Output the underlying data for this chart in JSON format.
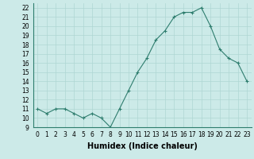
{
  "x": [
    0,
    1,
    2,
    3,
    4,
    5,
    6,
    7,
    8,
    9,
    10,
    11,
    12,
    13,
    14,
    15,
    16,
    17,
    18,
    19,
    20,
    21,
    22,
    23
  ],
  "y": [
    11,
    10.5,
    11,
    11,
    10.5,
    10,
    10.5,
    10,
    9,
    11,
    13,
    15,
    16.5,
    18.5,
    19.5,
    21,
    21.5,
    21.5,
    22,
    20,
    17.5,
    16.5,
    16,
    14
  ],
  "xlabel": "Humidex (Indice chaleur)",
  "ylim": [
    9,
    22.5
  ],
  "xlim": [
    -0.5,
    23.5
  ],
  "yticks": [
    9,
    10,
    11,
    12,
    13,
    14,
    15,
    16,
    17,
    18,
    19,
    20,
    21,
    22
  ],
  "xtick_labels": [
    "0",
    "1",
    "2",
    "3",
    "4",
    "5",
    "6",
    "7",
    "8",
    "9",
    "10",
    "11",
    "12",
    "13",
    "14",
    "15",
    "16",
    "17",
    "18",
    "19",
    "20",
    "21",
    "22",
    "23"
  ],
  "line_color": "#2e7d6e",
  "marker": "+",
  "bg_color": "#cceae8",
  "grid_color": "#afd6d3",
  "label_fontsize": 7,
  "tick_fontsize": 5.5
}
